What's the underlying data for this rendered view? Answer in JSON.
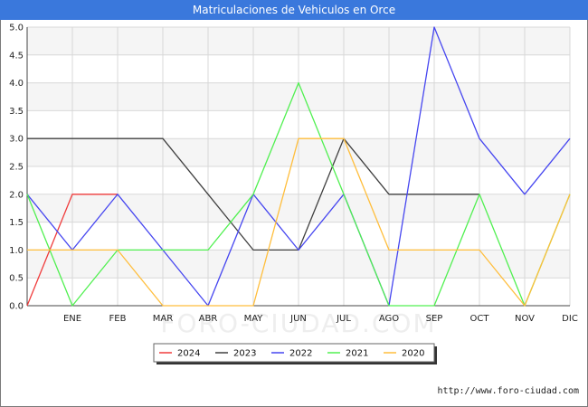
{
  "chart_data": {
    "type": "line",
    "title": "Matriculaciones de Vehiculos en Orce",
    "xlabel": "",
    "ylabel": "",
    "x": [
      "",
      "ENE",
      "FEB",
      "MAR",
      "ABR",
      "MAY",
      "JUN",
      "JUL",
      "AGO",
      "SEP",
      "OCT",
      "NOV",
      "DIC"
    ],
    "categories": [
      "ENE",
      "FEB",
      "MAR",
      "ABR",
      "MAY",
      "JUN",
      "JUL",
      "AGO",
      "SEP",
      "OCT",
      "NOV",
      "DIC"
    ],
    "ylim": [
      0,
      5
    ],
    "yticks": [
      "0.0",
      "0.5",
      "1.0",
      "1.5",
      "2.0",
      "2.5",
      "3.0",
      "3.5",
      "4.0",
      "4.5",
      "5.0"
    ],
    "grid": true,
    "legend_position": "bottom-center",
    "series": [
      {
        "name": "2024",
        "color": "#f03c3c",
        "values": [
          0,
          2,
          2,
          null,
          null,
          null,
          null,
          null,
          null,
          null,
          null,
          null,
          null
        ]
      },
      {
        "name": "2023",
        "color": "#404040",
        "values": [
          3,
          3,
          3,
          3,
          2,
          1,
          1,
          3,
          2,
          2,
          2,
          null,
          null
        ]
      },
      {
        "name": "2022",
        "color": "#4646f0",
        "values": [
          2,
          1,
          2,
          1,
          0,
          2,
          1,
          2,
          0,
          5,
          3,
          2,
          3
        ]
      },
      {
        "name": "2021",
        "color": "#50f050",
        "values": [
          2,
          0,
          1,
          1,
          1,
          2,
          4,
          2,
          0,
          0,
          2,
          0,
          2
        ]
      },
      {
        "name": "2020",
        "color": "#ffbe3c",
        "values": [
          1,
          1,
          1,
          0,
          0,
          0,
          3,
          3,
          1,
          1,
          1,
          0,
          2
        ]
      }
    ]
  },
  "footer": {
    "url": "http://www.foro-ciudad.com",
    "watermark": "FORO-CIUDAD.COM"
  }
}
